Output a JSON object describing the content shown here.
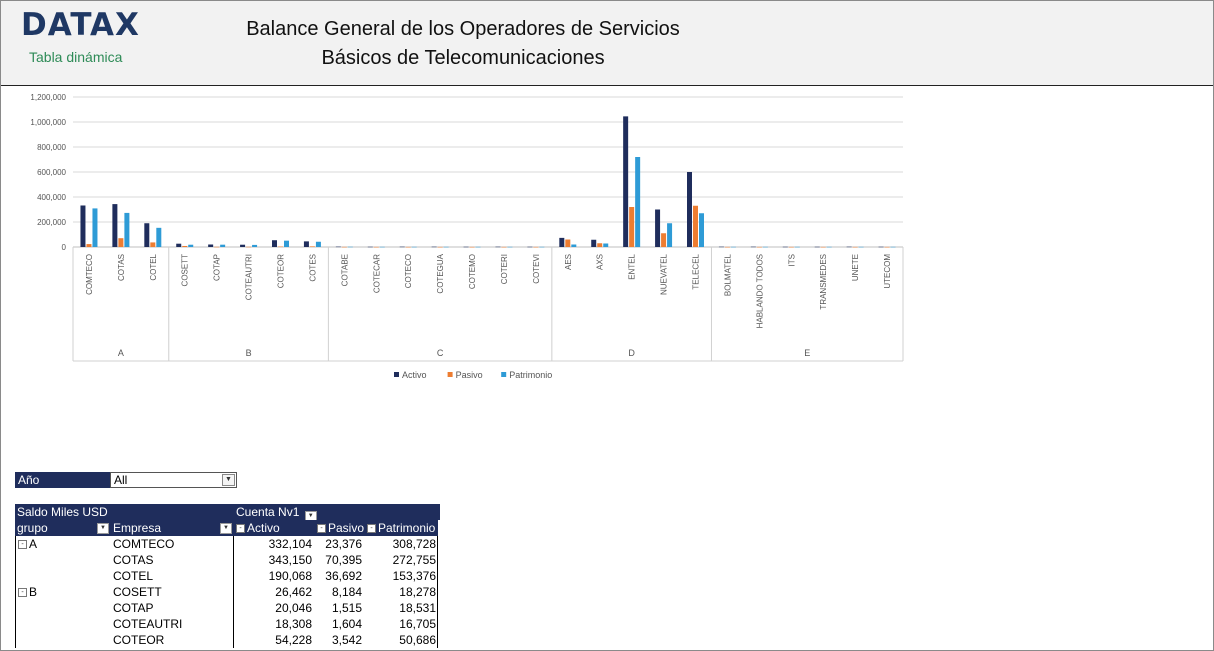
{
  "header": {
    "logo": "DATAX",
    "subtitle": "Tabla dinámica",
    "title_line1": "Balance General de los Operadores de Servicios",
    "title_line2": "Básicos de Telecomunicaciones"
  },
  "chart_data": {
    "type": "bar",
    "ylim": [
      0,
      1200000
    ],
    "yticks": [
      "0",
      "200,000",
      "400,000",
      "600,000",
      "800,000",
      "1,000,000",
      "1,200,000"
    ],
    "groups": [
      {
        "name": "A",
        "categories": [
          "COMTECO",
          "COTAS",
          "COTEL"
        ]
      },
      {
        "name": "B",
        "categories": [
          "COSETT",
          "COTAP",
          "COTEAUTRI",
          "COTEOR",
          "COTES"
        ]
      },
      {
        "name": "C",
        "categories": [
          "COTABE",
          "COTECAR",
          "COTECO",
          "COTEGUA",
          "COTEMO",
          "COTERI",
          "COTEVI"
        ]
      },
      {
        "name": "D",
        "categories": [
          "AES",
          "AXS",
          "ENTEL",
          "NUEVATEL",
          "TELECEL"
        ]
      },
      {
        "name": "E",
        "categories": [
          "BOLMATEL",
          "HABLANDO TODOS",
          "ITS",
          "TRANSMEDES",
          "UNETE",
          "UTECOM"
        ]
      }
    ],
    "series": [
      {
        "name": "Activo",
        "color": "#1f2d5c",
        "values": [
          332104,
          343150,
          190068,
          26462,
          20046,
          18308,
          54228,
          45000,
          3000,
          2000,
          2500,
          2500,
          2000,
          2500,
          2000,
          73000,
          58000,
          1045000,
          300000,
          600000,
          2500,
          2500,
          2000,
          2000,
          2500,
          2000
        ]
      },
      {
        "name": "Pasivo",
        "color": "#ed7d31",
        "values": [
          23376,
          70395,
          36692,
          8184,
          1515,
          1604,
          3542,
          5000,
          1000,
          800,
          800,
          800,
          800,
          800,
          800,
          60000,
          30000,
          320000,
          110000,
          330000,
          800,
          800,
          800,
          800,
          800,
          800
        ]
      },
      {
        "name": "Patrimonio",
        "color": "#2e9bd6",
        "values": [
          308728,
          272755,
          153376,
          18278,
          18531,
          16705,
          50686,
          42000,
          2000,
          1500,
          1500,
          1500,
          1500,
          1500,
          1500,
          20000,
          28000,
          720000,
          190000,
          270000,
          1500,
          1500,
          1500,
          1500,
          1500,
          1500
        ]
      }
    ]
  },
  "slicer": {
    "label": "Año",
    "value": "All"
  },
  "pivot": {
    "title": "Saldo Miles USD",
    "columns_label": "Cuenta Nv1",
    "col_group": "grupo",
    "col_company": "Empresa",
    "col_activo": "Activo",
    "col_pasivo": "Pasivo",
    "col_patrimonio": "Patrimonio",
    "rows": [
      {
        "group": "A",
        "company": "COMTECO",
        "activo": "332,104",
        "pasivo": "23,376",
        "patrimonio": "308,728"
      },
      {
        "group": "",
        "company": "COTAS",
        "activo": "343,150",
        "pasivo": "70,395",
        "patrimonio": "272,755"
      },
      {
        "group": "",
        "company": "COTEL",
        "activo": "190,068",
        "pasivo": "36,692",
        "patrimonio": "153,376"
      },
      {
        "group": "B",
        "company": "COSETT",
        "activo": "26,462",
        "pasivo": "8,184",
        "patrimonio": "18,278"
      },
      {
        "group": "",
        "company": "COTAP",
        "activo": "20,046",
        "pasivo": "1,515",
        "patrimonio": "18,531"
      },
      {
        "group": "",
        "company": "COTEAUTRI",
        "activo": "18,308",
        "pasivo": "1,604",
        "patrimonio": "16,705"
      },
      {
        "group": "",
        "company": "COTEOR",
        "activo": "54,228",
        "pasivo": "3,542",
        "patrimonio": "50,686"
      }
    ]
  }
}
